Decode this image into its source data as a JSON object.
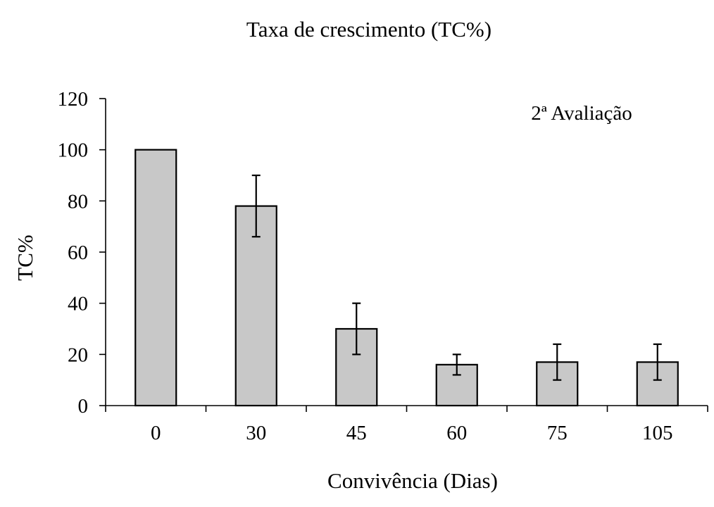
{
  "chart_data": {
    "type": "bar",
    "title": "Taxa de crescimento (TC%)",
    "xlabel": "Convivência (Dias)",
    "ylabel": "TC%",
    "annotation": "2ª Avaliação",
    "categories": [
      "0",
      "30",
      "45",
      "60",
      "75",
      "105"
    ],
    "values": [
      100,
      78,
      30,
      16,
      17,
      17
    ],
    "errors": [
      null,
      12,
      10,
      4,
      7,
      7
    ],
    "ylim": [
      0,
      120
    ],
    "yticks": [
      0,
      20,
      40,
      60,
      80,
      100,
      120
    ],
    "grid": false,
    "legend": "none",
    "bar_color": "#c8c8c8",
    "edge_color": "#000000"
  }
}
